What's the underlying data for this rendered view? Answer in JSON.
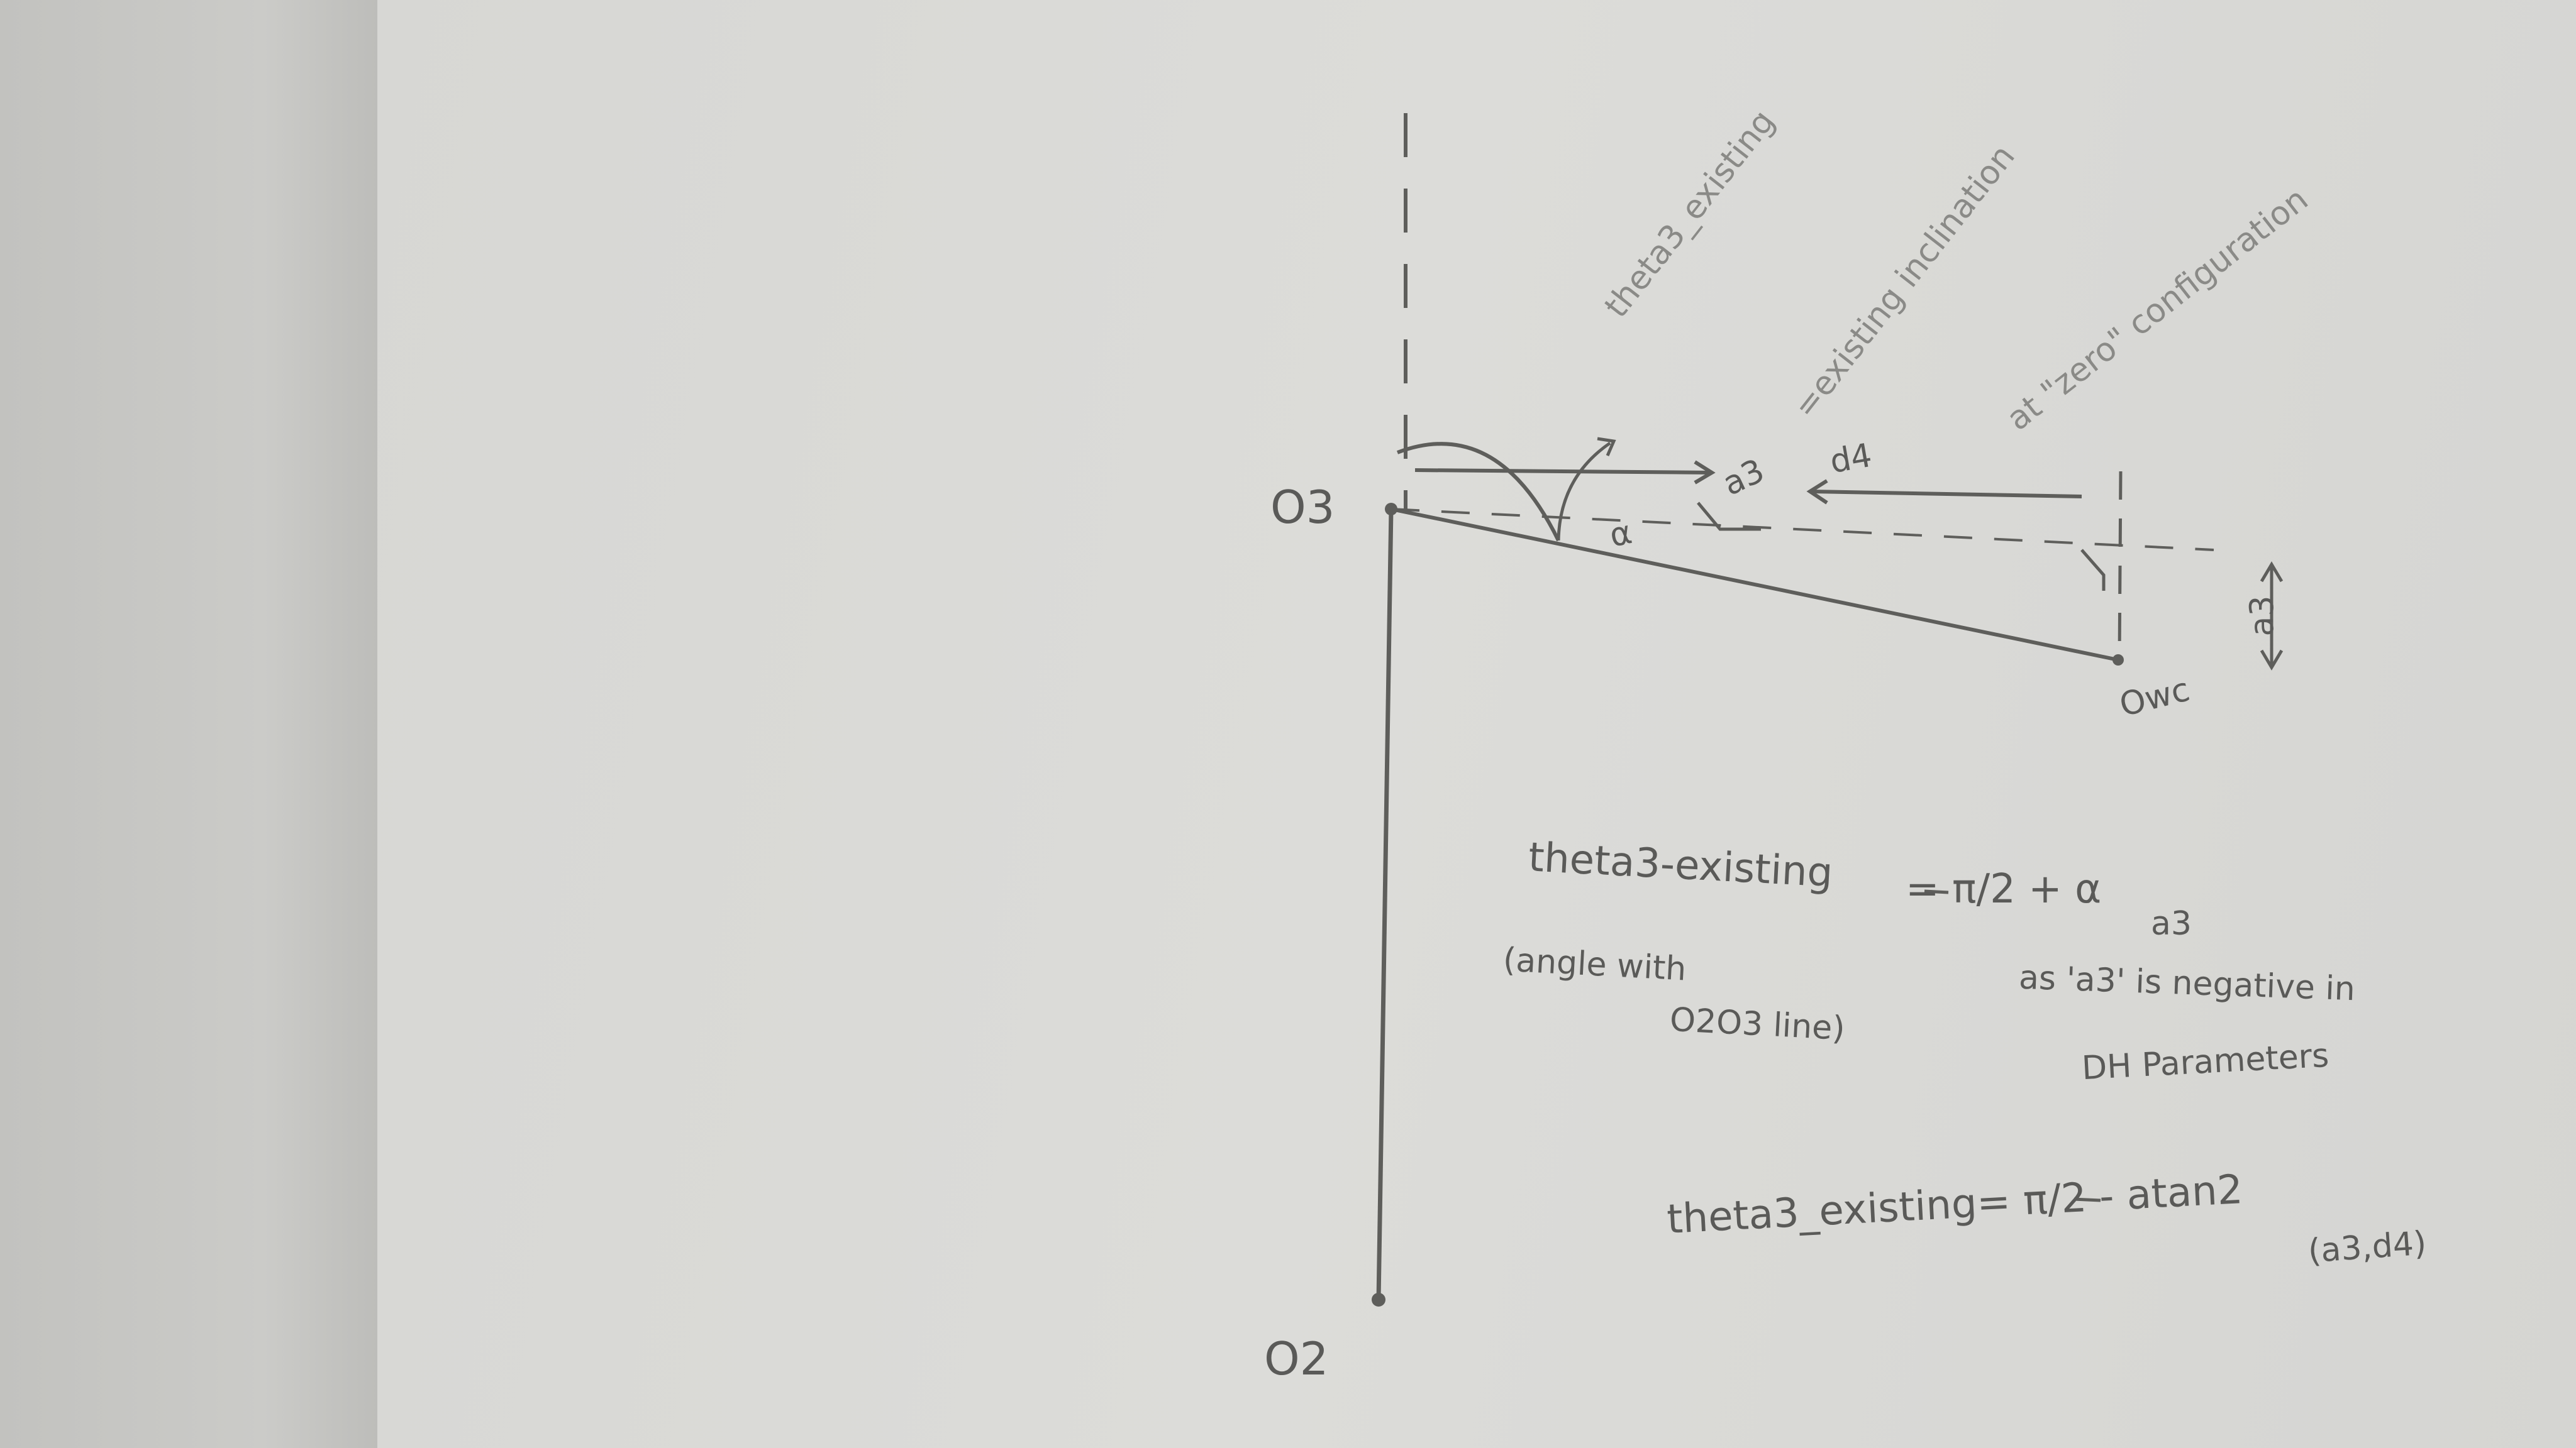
{
  "points": {
    "o3": "O3",
    "o2": "O2",
    "owc": "Owc"
  },
  "dims": {
    "a3_top": "a3",
    "d4": "d4",
    "alpha": "α",
    "a3_side": "a3"
  },
  "rotated_note": {
    "line1": "theta3_existing",
    "line2": "=existing inclination",
    "line3": "at \"zero\" configuration"
  },
  "equation1": {
    "lhs": "theta3-existing",
    "rhs": "= π/2 + α",
    "caption_line1": "(angle with",
    "caption_line2": "O2O3 line)"
  },
  "note": {
    "label_top": "a3",
    "line1": "as 'a3' is negative in",
    "line2": "DH Parameters"
  },
  "equation2": {
    "text": "theta3_existing= π/2 - atan2",
    "args": "(a3,d4)"
  }
}
